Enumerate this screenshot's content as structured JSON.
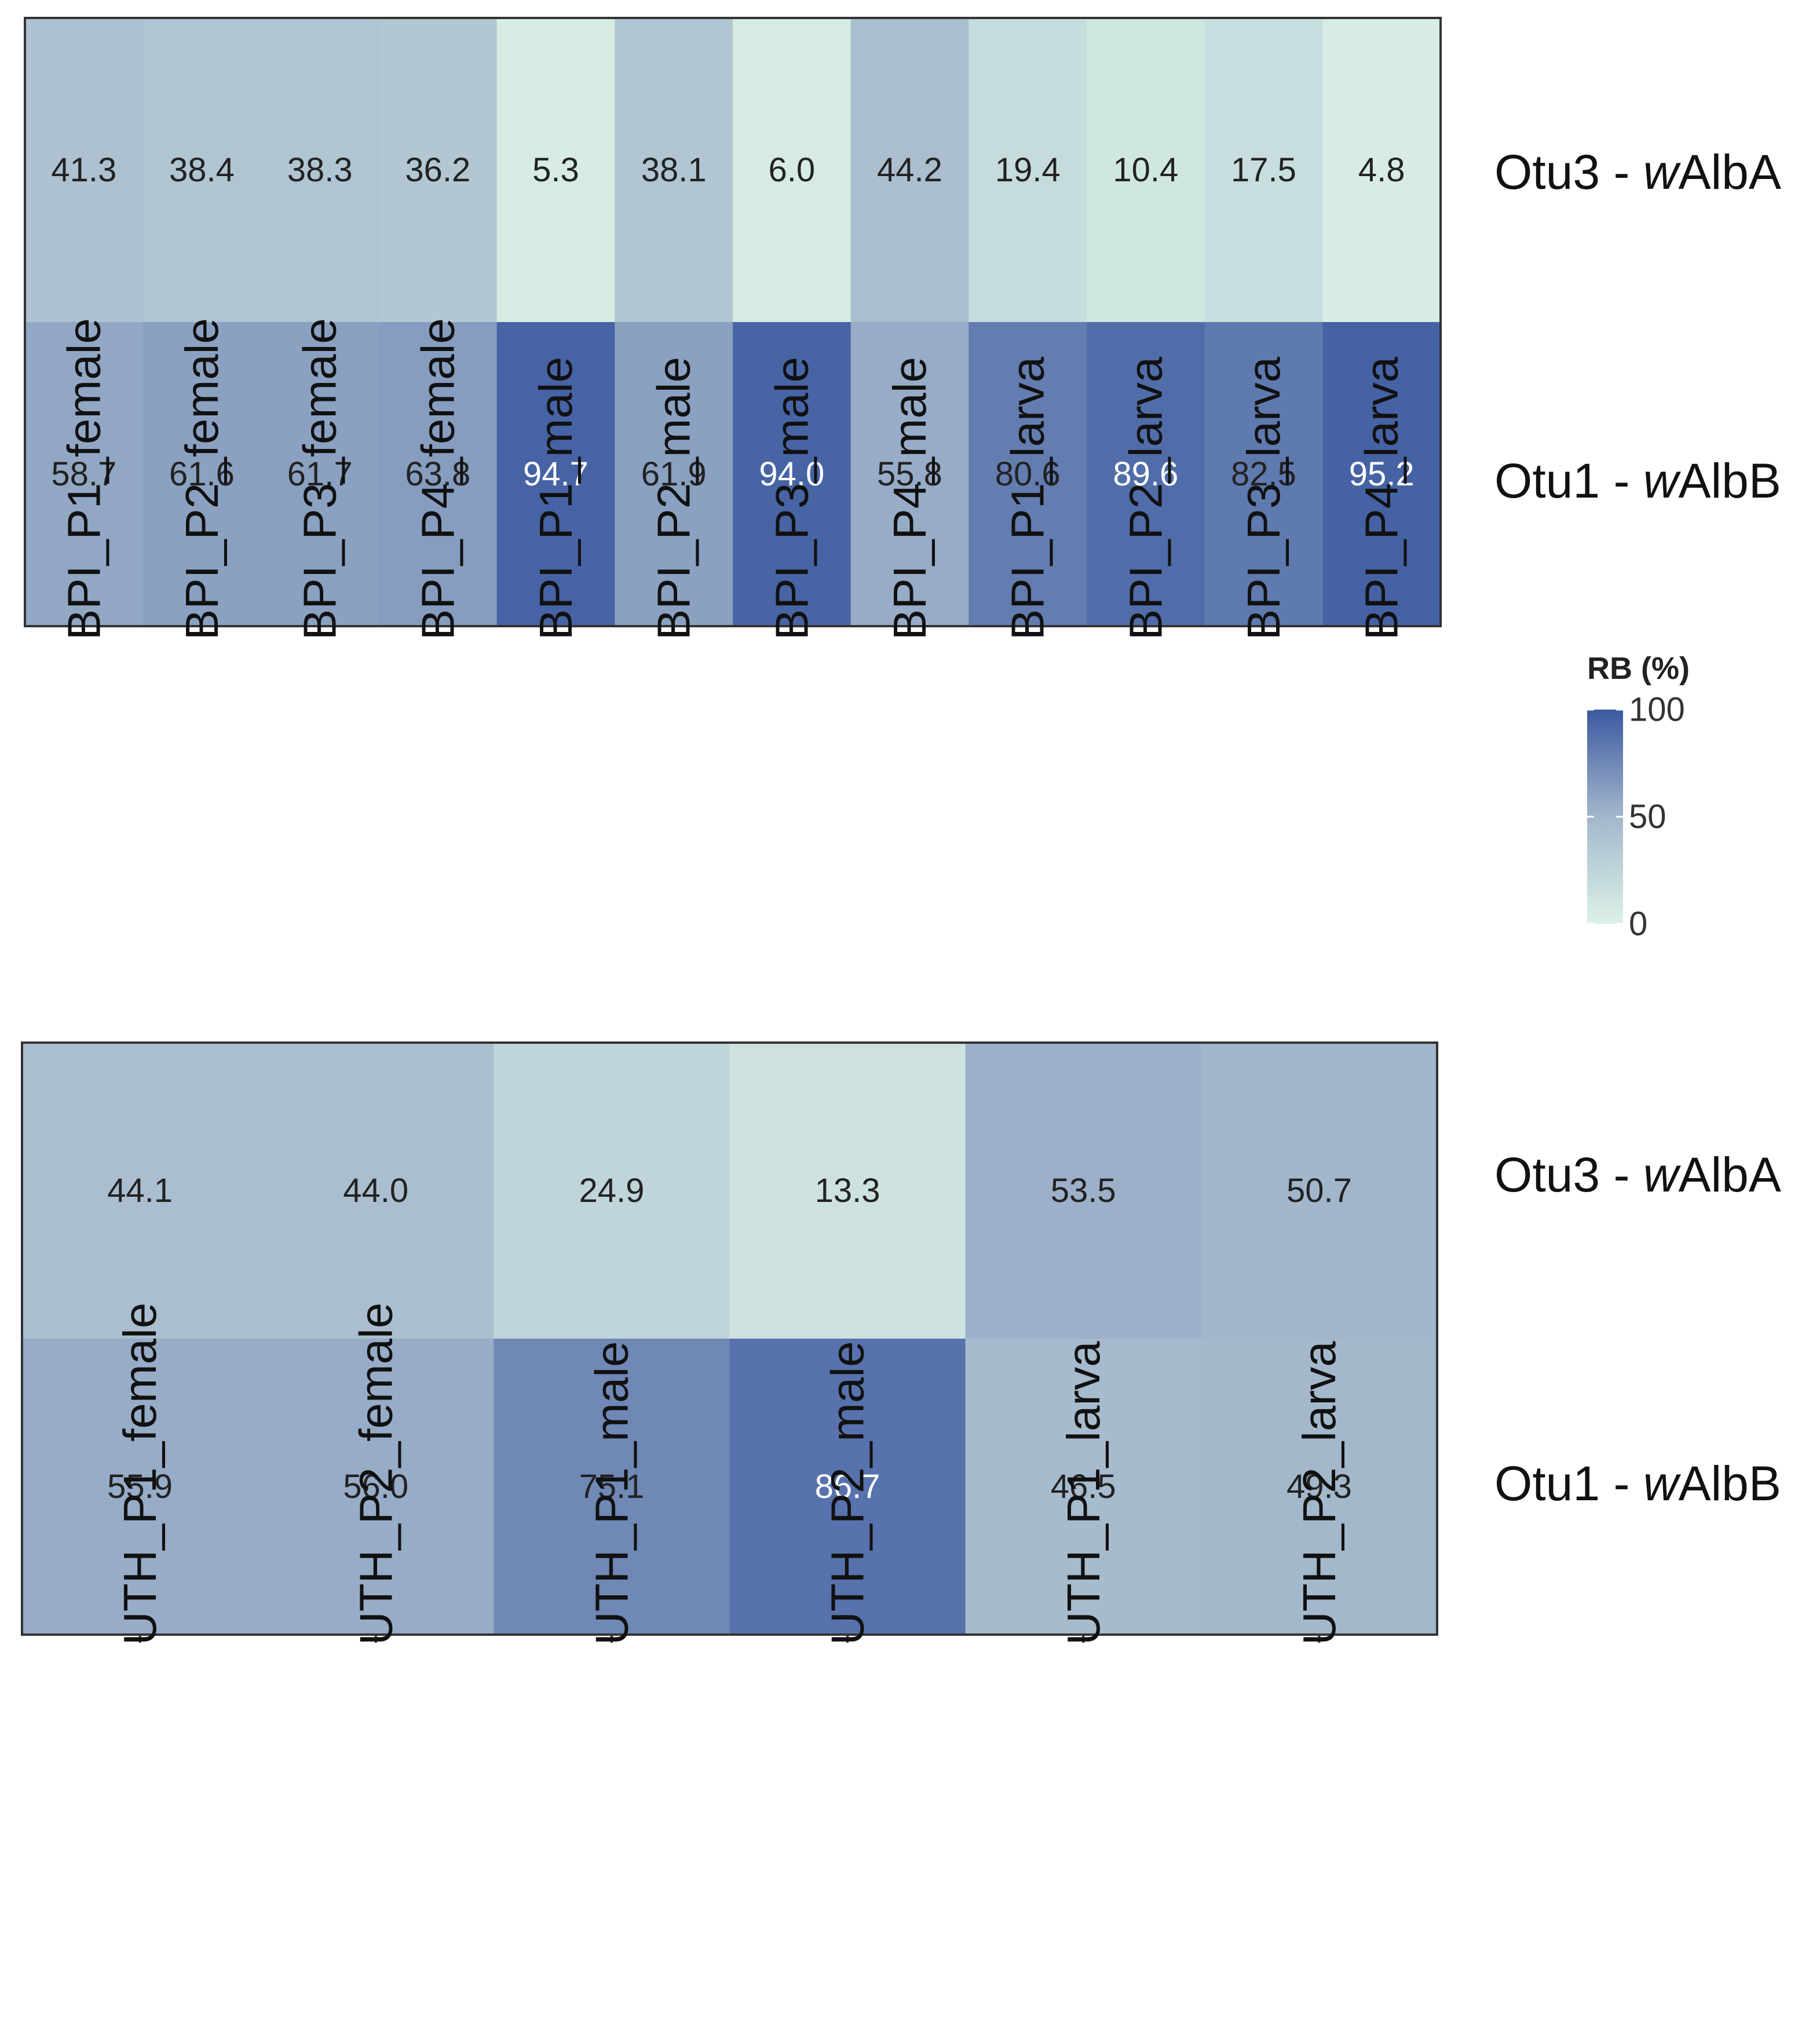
{
  "chart_data": [
    {
      "type": "heatmap",
      "name": "BPI",
      "rows": [
        {
          "otu": "Otu3 - ",
          "prefix": "w",
          "suffix": "AlbA"
        },
        {
          "otu": "Otu1 - ",
          "prefix": "w",
          "suffix": "AlbB"
        }
      ],
      "columns": [
        "BPI_P1_female",
        "BPI_P2_female",
        "BPI_P3_female",
        "BPI_P4_female",
        "BPI_P1_male",
        "BPI_P2_male",
        "BPI_P3_male",
        "BPI_P4_male",
        "BPI_P1_larva",
        "BPI_P2_larva",
        "BPI_P3_larva",
        "BPI_P4_larva"
      ],
      "values": [
        [
          41.3,
          38.4,
          38.3,
          36.2,
          5.3,
          38.1,
          6.0,
          44.2,
          19.4,
          10.4,
          17.5,
          4.8
        ],
        [
          58.7,
          61.6,
          61.7,
          63.8,
          94.7,
          61.9,
          94.0,
          55.8,
          80.6,
          89.6,
          82.5,
          95.2
        ]
      ]
    },
    {
      "type": "heatmap",
      "name": "UTH",
      "rows": [
        {
          "otu": "Otu3 - ",
          "prefix": "w",
          "suffix": "AlbA"
        },
        {
          "otu": "Otu1 - ",
          "prefix": "w",
          "suffix": "AlbB"
        }
      ],
      "columns": [
        "UTH_P1_female",
        "UTH_P2_female",
        "UTH_P1_male",
        "UTH_P2_male",
        "UTH_P1_larva",
        "UTH_P2_larva"
      ],
      "values": [
        [
          44.1,
          44.0,
          24.9,
          13.3,
          53.5,
          50.7
        ],
        [
          55.9,
          56.0,
          75.1,
          86.7,
          46.5,
          49.3
        ]
      ]
    }
  ],
  "legend": {
    "title": "RB (%)",
    "ticks": [
      "100",
      "50",
      "0"
    ],
    "range": [
      0,
      100
    ],
    "low_color": "#dcf2e6",
    "mid_color": "#a3b7cc",
    "high_color": "#3b59a0"
  }
}
